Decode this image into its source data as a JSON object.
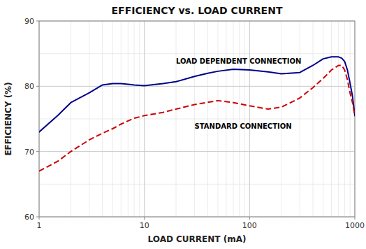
{
  "chart_data": {
    "type": "line",
    "title": "EFFICIENCY vs. LOAD CURRENT",
    "x_label": "LOAD CURRENT (mA)",
    "y_label": "EFFICIENCY (%)",
    "log": "x",
    "grid": true,
    "xlim": [
      1,
      1000
    ],
    "ylim": [
      60,
      90
    ],
    "xticks": [
      1,
      10,
      100,
      1000
    ],
    "yticks": [
      60,
      70,
      80,
      90
    ],
    "series": [
      {
        "color": "#00008B",
        "line_style": "solid",
        "x": [
          1,
          1.5,
          2,
          3,
          4,
          5,
          6,
          7,
          8,
          10,
          15,
          20,
          30,
          40,
          50,
          70,
          100,
          150,
          200,
          300,
          400,
          500,
          600,
          700,
          750,
          800,
          850,
          900,
          950,
          1000
        ],
        "values": [
          73.0,
          75.5,
          77.5,
          79.0,
          80.2,
          80.4,
          80.4,
          80.3,
          80.2,
          80.1,
          80.4,
          80.7,
          81.5,
          82.0,
          82.3,
          82.6,
          82.5,
          82.2,
          81.9,
          82.1,
          83.2,
          84.2,
          84.5,
          84.5,
          84.3,
          83.8,
          82.5,
          80.5,
          78.5,
          75.5
        ]
      },
      {
        "color": "#CC0000",
        "line_style": "dashed",
        "x": [
          1,
          1.5,
          2,
          3,
          4,
          5,
          6,
          7,
          8,
          10,
          15,
          20,
          30,
          50,
          70,
          100,
          150,
          200,
          300,
          400,
          500,
          600,
          700,
          750,
          800,
          850,
          900,
          950,
          1000
        ],
        "values": [
          67.0,
          68.5,
          70.0,
          71.8,
          72.8,
          73.5,
          74.2,
          74.7,
          75.1,
          75.5,
          76.0,
          76.5,
          77.2,
          77.8,
          77.5,
          77.0,
          76.5,
          76.8,
          78.2,
          79.8,
          81.2,
          82.5,
          83.2,
          83.2,
          82.5,
          81.0,
          79.0,
          77.5,
          75.5
        ]
      }
    ],
    "annotations": [
      {
        "text": "LOAD DEPENDENT CONNECTION",
        "x": 20,
        "y": 83.5
      },
      {
        "text": "STANDARD CONNECTION",
        "x": 30,
        "y": 73.5
      }
    ]
  }
}
